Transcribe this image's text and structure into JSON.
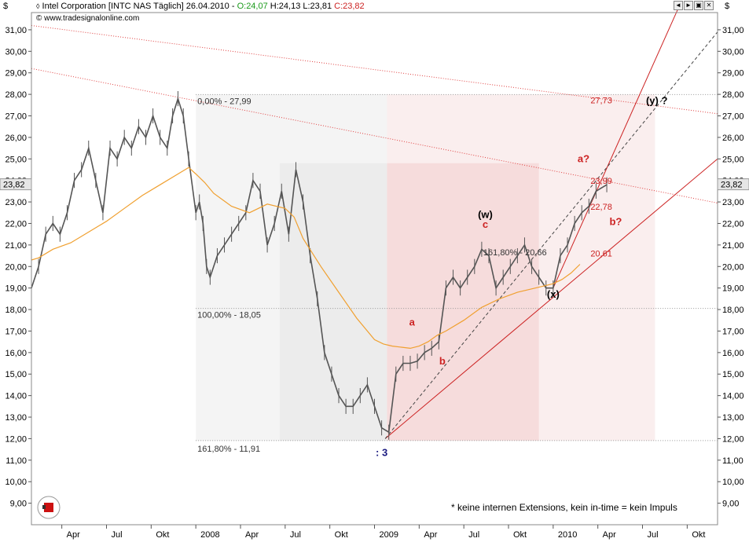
{
  "header": {
    "currency_left": "$",
    "currency_right": "$",
    "instrument": "Intel Corporation [INTC NAS  Täglich]",
    "date": "26.04.2010",
    "open": "O:24,07",
    "high": "H:24,13",
    "low": "L:23,81",
    "close": "C:23,82",
    "website": "www.tradesignalonline.com"
  },
  "window_buttons": [
    "◄",
    "►",
    "▣",
    "✕"
  ],
  "footnote": "* keine internen Extensions, kein in-time = kein Impuls",
  "colors": {
    "price": "#555555",
    "ma": "#f0a030",
    "resistance": "#e04040",
    "support": "#cc2222",
    "wave_label_red": "#cc2222",
    "wave_label_black": "#000000",
    "wave_label_blue": "#1a1a80",
    "zone_grey": "#ececec",
    "zone_pink": "#f6dcdc"
  },
  "chart_data": {
    "type": "line",
    "title": "Intel Corporation [INTC NAS Täglich]",
    "ylabel": "$",
    "ylim": [
      8.0,
      31.8
    ],
    "yticks": [
      9,
      10,
      11,
      12,
      13,
      14,
      15,
      16,
      17,
      18,
      19,
      20,
      21,
      22,
      23,
      24,
      25,
      26,
      27,
      28,
      29,
      30,
      31
    ],
    "ytick_labels": [
      "9,00",
      "10,00",
      "11,00",
      "12,00",
      "13,00",
      "14,00",
      "15,00",
      "16,00",
      "17,00",
      "18,00",
      "19,00",
      "20,00",
      "21,00",
      "22,00",
      "23,00",
      "24,00",
      "25,00",
      "26,00",
      "27,00",
      "28,00",
      "29,00",
      "30,00",
      "31,00"
    ],
    "xlim": [
      2007.08,
      2010.92
    ],
    "xticks": [
      {
        "x": 2007.25,
        "label": "Apr"
      },
      {
        "x": 2007.5,
        "label": "Jul"
      },
      {
        "x": 2007.75,
        "label": "Okt"
      },
      {
        "x": 2008.0,
        "label": "2008"
      },
      {
        "x": 2008.25,
        "label": "Apr"
      },
      {
        "x": 2008.5,
        "label": "Jul"
      },
      {
        "x": 2008.75,
        "label": "Okt"
      },
      {
        "x": 2009.0,
        "label": "2009"
      },
      {
        "x": 2009.25,
        "label": "Apr"
      },
      {
        "x": 2009.5,
        "label": "Jul"
      },
      {
        "x": 2009.75,
        "label": "Okt"
      },
      {
        "x": 2010.0,
        "label": "2010"
      },
      {
        "x": 2010.25,
        "label": "Apr"
      },
      {
        "x": 2010.5,
        "label": "Jul"
      },
      {
        "x": 2010.75,
        "label": "Okt"
      }
    ],
    "last_price": "23,82",
    "series": [
      {
        "name": "INTC daily close",
        "x": [
          2007.08,
          2007.12,
          2007.16,
          2007.2,
          2007.24,
          2007.28,
          2007.32,
          2007.36,
          2007.4,
          2007.44,
          2007.48,
          2007.52,
          2007.56,
          2007.6,
          2007.64,
          2007.68,
          2007.72,
          2007.76,
          2007.8,
          2007.84,
          2007.87,
          2007.9,
          2007.93,
          2007.96,
          2008.0,
          2008.02,
          2008.04,
          2008.06,
          2008.08,
          2008.12,
          2008.16,
          2008.2,
          2008.24,
          2008.28,
          2008.32,
          2008.36,
          2008.4,
          2008.44,
          2008.48,
          2008.52,
          2008.56,
          2008.6,
          2008.64,
          2008.68,
          2008.72,
          2008.76,
          2008.8,
          2008.84,
          2008.88,
          2008.92,
          2008.96,
          2009.0,
          2009.04,
          2009.08,
          2009.12,
          2009.16,
          2009.2,
          2009.24,
          2009.28,
          2009.32,
          2009.36,
          2009.4,
          2009.44,
          2009.48,
          2009.52,
          2009.56,
          2009.6,
          2009.64,
          2009.68,
          2009.72,
          2009.76,
          2009.8,
          2009.84,
          2009.88,
          2009.92,
          2009.96,
          2010.0,
          2010.04,
          2010.08,
          2010.12,
          2010.16,
          2010.2,
          2010.24,
          2010.3
        ],
        "values": [
          19.0,
          20.0,
          21.5,
          22.0,
          21.5,
          22.5,
          24.0,
          24.5,
          25.5,
          24.0,
          22.5,
          25.5,
          25.0,
          26.0,
          25.5,
          26.5,
          26.0,
          27.0,
          26.0,
          25.5,
          27.0,
          27.8,
          27.0,
          25.0,
          22.5,
          23.0,
          22.0,
          20.0,
          19.5,
          20.5,
          21.0,
          21.5,
          22.0,
          22.5,
          24.0,
          23.5,
          21.0,
          22.0,
          23.5,
          21.5,
          24.5,
          23.0,
          20.5,
          18.5,
          16.0,
          15.0,
          14.0,
          13.5,
          13.5,
          14.0,
          14.5,
          13.5,
          12.5,
          12.3,
          15.0,
          15.5,
          15.5,
          15.6,
          16.0,
          16.2,
          16.5,
          19.0,
          19.5,
          19.0,
          19.5,
          20.0,
          20.8,
          20.5,
          19.0,
          19.5,
          20.0,
          20.5,
          21.0,
          20.0,
          19.5,
          19.0,
          19.0,
          20.5,
          21.0,
          22.0,
          22.5,
          22.8,
          23.5,
          23.8
        ]
      },
      {
        "name": "Moving average",
        "x": [
          2007.08,
          2007.12,
          2007.2,
          2007.3,
          2007.4,
          2007.5,
          2007.6,
          2007.7,
          2007.8,
          2007.9,
          2007.96,
          2008.0,
          2008.05,
          2008.1,
          2008.2,
          2008.3,
          2008.4,
          2008.5,
          2008.55,
          2008.6,
          2008.7,
          2008.8,
          2008.9,
          2009.0,
          2009.05,
          2009.1,
          2009.15,
          2009.2,
          2009.25,
          2009.3,
          2009.35,
          2009.4,
          2009.5,
          2009.6,
          2009.7,
          2009.8,
          2009.9,
          2010.0,
          2010.05,
          2010.1,
          2010.15
        ],
        "values": [
          20.3,
          20.4,
          20.8,
          21.1,
          21.6,
          22.1,
          22.7,
          23.3,
          23.8,
          24.3,
          24.6,
          24.3,
          23.9,
          23.4,
          22.8,
          22.5,
          22.9,
          22.7,
          22.3,
          21.3,
          20.0,
          18.8,
          17.6,
          16.6,
          16.4,
          16.3,
          16.25,
          16.2,
          16.3,
          16.5,
          16.8,
          17.0,
          17.5,
          18.1,
          18.5,
          18.8,
          19.0,
          19.2,
          19.4,
          19.7,
          20.1
        ]
      }
    ],
    "levels": [
      {
        "label": "0,00% - 27,99",
        "value": 27.99
      },
      {
        "label": "100,00% - 18,05",
        "value": 18.05
      },
      {
        "label": "161,80% - 11,91",
        "value": 11.91
      },
      {
        "label": "161,80% - 20,66",
        "value": 20.66
      }
    ],
    "right_levels": [
      {
        "label": "27,73",
        "value": 27.73
      },
      {
        "label": "23,99",
        "value": 23.99
      },
      {
        "label": "22,78",
        "value": 22.78
      },
      {
        "label": "20,61",
        "value": 20.61
      }
    ],
    "wave_labels": [
      {
        "text": "a",
        "x": 2009.21,
        "y": 17.25,
        "color": "red"
      },
      {
        "text": "b",
        "x": 2009.38,
        "y": 15.45,
        "color": "red"
      },
      {
        "text": "c",
        "x": 2009.62,
        "y": 21.8,
        "color": "red"
      },
      {
        "text": "(w)",
        "x": 2009.62,
        "y": 22.25,
        "color": "black"
      },
      {
        "text": ": 3",
        "x": 2009.04,
        "y": 11.2,
        "color": "blue"
      },
      {
        "text": "(x)",
        "x": 2010.0,
        "y": 18.55,
        "color": "black"
      },
      {
        "text": "a?",
        "x": 2010.17,
        "y": 24.85,
        "color": "red"
      },
      {
        "text": "b?",
        "x": 2010.35,
        "y": 21.92,
        "color": "red"
      },
      {
        "text": "(y) ?",
        "x": 2010.58,
        "y": 27.55,
        "color": "black"
      }
    ],
    "trendlines": [
      {
        "name": "upper resistance",
        "style": "dotted",
        "x": [
          2007.08,
          2010.92
        ],
        "y": [
          31.2,
          27.1
        ]
      },
      {
        "name": "lower resistance",
        "style": "dotted",
        "x": [
          2007.08,
          2010.92
        ],
        "y": [
          29.2,
          22.95
        ]
      },
      {
        "name": "support line",
        "style": "solid",
        "x": [
          2009.06,
          2010.92
        ],
        "y": [
          12.0,
          25.0
        ]
      },
      {
        "name": "steep channel line",
        "style": "solid",
        "x": [
          2010.0,
          2010.7
        ],
        "y": [
          19.0,
          32.0
        ]
      },
      {
        "name": "dashed projection",
        "style": "dashed",
        "x": [
          2009.06,
          2010.92
        ],
        "y": [
          12.0,
          30.9
        ]
      }
    ],
    "zones": [
      {
        "name": "decline zone",
        "x": [
          2008.0,
          2009.07
        ],
        "y": [
          11.91,
          27.99
        ],
        "color": "grey"
      },
      {
        "name": "decline core",
        "x": [
          2008.47,
          2009.07
        ],
        "y": [
          11.91,
          24.8
        ],
        "color": "grey-dark"
      },
      {
        "name": "advance zone",
        "x": [
          2009.07,
          2010.57
        ],
        "y": [
          11.91,
          27.99
        ],
        "color": "pink"
      },
      {
        "name": "advance core",
        "x": [
          2009.07,
          2009.92
        ],
        "y": [
          11.91,
          24.8
        ],
        "color": "pink-dark"
      }
    ]
  }
}
